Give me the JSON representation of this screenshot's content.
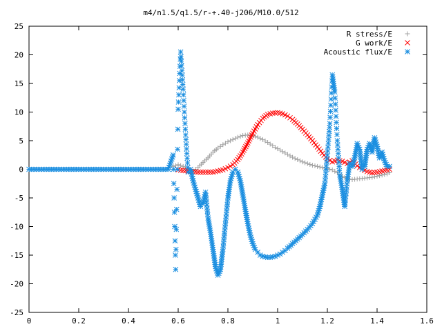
{
  "chart_data": {
    "type": "scatter",
    "title": "m4/n1.5/q1.5/r-+.40-j206/M10.0/512",
    "xlabel": "",
    "ylabel": "",
    "xlim": [
      0,
      1.6
    ],
    "ylim": [
      -25,
      25
    ],
    "grid": false,
    "legend_position": "top-right",
    "x_ticks": [
      "0",
      "0.2",
      "0.4",
      "0.6",
      "0.8",
      "1",
      "1.2",
      "1.4",
      "1.6"
    ],
    "y_ticks": [
      "-25",
      "-20",
      "-15",
      "-10",
      "-5",
      "0",
      "5",
      "10",
      "15",
      "20",
      "25"
    ],
    "series": [
      {
        "name": "R stress/E",
        "marker": "plus",
        "color": "#a0a0a0",
        "x": [
          0.58,
          0.6,
          0.62,
          0.64,
          0.66,
          0.68,
          0.7,
          0.72,
          0.74,
          0.76,
          0.78,
          0.8,
          0.82,
          0.84,
          0.86,
          0.88,
          0.9,
          0.92,
          0.94,
          0.96,
          0.98,
          1.0,
          1.02,
          1.04,
          1.06,
          1.08,
          1.1,
          1.12,
          1.14,
          1.16,
          1.18,
          1.2,
          1.22,
          1.24,
          1.26,
          1.28,
          1.3,
          1.32,
          1.34,
          1.36,
          1.38,
          1.4,
          1.42,
          1.44,
          1.45
        ],
        "y": [
          0.5,
          0.8,
          0.5,
          0.1,
          -0.3,
          0.3,
          1.2,
          2.0,
          3.0,
          3.7,
          4.3,
          4.8,
          5.2,
          5.6,
          5.9,
          6.0,
          5.9,
          5.6,
          5.2,
          4.7,
          4.1,
          3.6,
          3.1,
          2.6,
          2.1,
          1.7,
          1.3,
          1.0,
          0.7,
          0.5,
          0.3,
          0.1,
          -0.1,
          -0.6,
          -1.2,
          -1.7,
          -1.8,
          -1.7,
          -1.6,
          -1.5,
          -1.4,
          -1.2,
          -1.0,
          -0.8,
          -0.6
        ]
      },
      {
        "name": "G work/E",
        "marker": "cross",
        "color": "#ff0000",
        "x": [
          0.6,
          0.62,
          0.64,
          0.66,
          0.68,
          0.7,
          0.72,
          0.74,
          0.76,
          0.78,
          0.8,
          0.82,
          0.84,
          0.86,
          0.88,
          0.9,
          0.92,
          0.94,
          0.96,
          0.98,
          1.0,
          1.02,
          1.04,
          1.06,
          1.08,
          1.1,
          1.12,
          1.14,
          1.16,
          1.18,
          1.2,
          1.22,
          1.24,
          1.26,
          1.28,
          1.3,
          1.32,
          1.34,
          1.36,
          1.38,
          1.4,
          1.42,
          1.44,
          1.45
        ],
        "y": [
          -0.1,
          -0.2,
          -0.3,
          -0.4,
          -0.5,
          -0.5,
          -0.5,
          -0.5,
          -0.3,
          -0.1,
          0.3,
          0.8,
          1.7,
          3.0,
          4.6,
          6.3,
          7.8,
          8.9,
          9.6,
          9.8,
          9.9,
          9.7,
          9.3,
          8.7,
          7.9,
          7.0,
          6.0,
          5.0,
          3.9,
          2.8,
          1.8,
          1.3,
          1.6,
          1.4,
          1.0,
          1.5,
          0.6,
          0.0,
          -0.4,
          -0.6,
          -0.5,
          -0.3,
          -0.1,
          0.0
        ]
      },
      {
        "name": "Acoustic flux/E",
        "marker": "star",
        "color": "#1a8ee0",
        "x": [
          0.0,
          0.02,
          0.04,
          0.06,
          0.08,
          0.1,
          0.12,
          0.14,
          0.16,
          0.18,
          0.2,
          0.22,
          0.24,
          0.26,
          0.28,
          0.3,
          0.32,
          0.34,
          0.36,
          0.38,
          0.4,
          0.42,
          0.44,
          0.46,
          0.48,
          0.5,
          0.52,
          0.54,
          0.56,
          0.58,
          0.59,
          0.6,
          0.61,
          0.62,
          0.63,
          0.64,
          0.65,
          0.66,
          0.67,
          0.68,
          0.69,
          0.7,
          0.71,
          0.72,
          0.73,
          0.74,
          0.75,
          0.76,
          0.77,
          0.78,
          0.79,
          0.8,
          0.81,
          0.82,
          0.83,
          0.84,
          0.85,
          0.86,
          0.87,
          0.88,
          0.89,
          0.9,
          0.91,
          0.92,
          0.93,
          0.94,
          0.95,
          0.96,
          0.97,
          0.98,
          0.99,
          1.0,
          1.01,
          1.02,
          1.03,
          1.04,
          1.06,
          1.08,
          1.1,
          1.12,
          1.14,
          1.16,
          1.17,
          1.18,
          1.19,
          1.2,
          1.21,
          1.22,
          1.23,
          1.24,
          1.25,
          1.26,
          1.27,
          1.28,
          1.29,
          1.3,
          1.31,
          1.32,
          1.33,
          1.34,
          1.35,
          1.36,
          1.37,
          1.38,
          1.39,
          1.4,
          1.41,
          1.42,
          1.43,
          1.44,
          1.45
        ],
        "y": [
          0.0,
          0.0,
          0.0,
          0.0,
          0.0,
          0.0,
          0.0,
          0.0,
          0.0,
          0.0,
          0.0,
          0.0,
          0.0,
          0.0,
          0.0,
          0.0,
          0.0,
          0.0,
          0.0,
          0.0,
          0.0,
          0.0,
          0.0,
          0.0,
          0.0,
          0.0,
          0.0,
          0.0,
          0.0,
          2.5,
          -17.5,
          10.5,
          20.5,
          14.0,
          6.0,
          -0.5,
          0.0,
          -2.0,
          -3.5,
          -5.0,
          -6.5,
          -6.0,
          -4.0,
          -8.5,
          -11.0,
          -14.0,
          -17.0,
          -18.5,
          -17.5,
          -14.0,
          -9.5,
          -5.0,
          -2.0,
          -0.5,
          0.0,
          -0.5,
          -2.0,
          -4.5,
          -7.0,
          -9.5,
          -11.5,
          -13.0,
          -14.0,
          -14.5,
          -15.0,
          -15.2,
          -15.3,
          -15.4,
          -15.4,
          -15.3,
          -15.2,
          -15.0,
          -14.8,
          -14.5,
          -14.2,
          -13.8,
          -13.0,
          -12.2,
          -11.4,
          -10.5,
          -9.5,
          -8.0,
          -6.5,
          -4.5,
          -2.5,
          2.5,
          8.0,
          16.5,
          13.5,
          5.0,
          -1.0,
          -3.5,
          -6.5,
          -2.0,
          1.0,
          0.5,
          2.0,
          4.5,
          3.5,
          0.0,
          0.5,
          3.5,
          4.5,
          3.0,
          5.5,
          4.0,
          2.0,
          3.0,
          1.5,
          0.5,
          0.5
        ]
      }
    ]
  }
}
